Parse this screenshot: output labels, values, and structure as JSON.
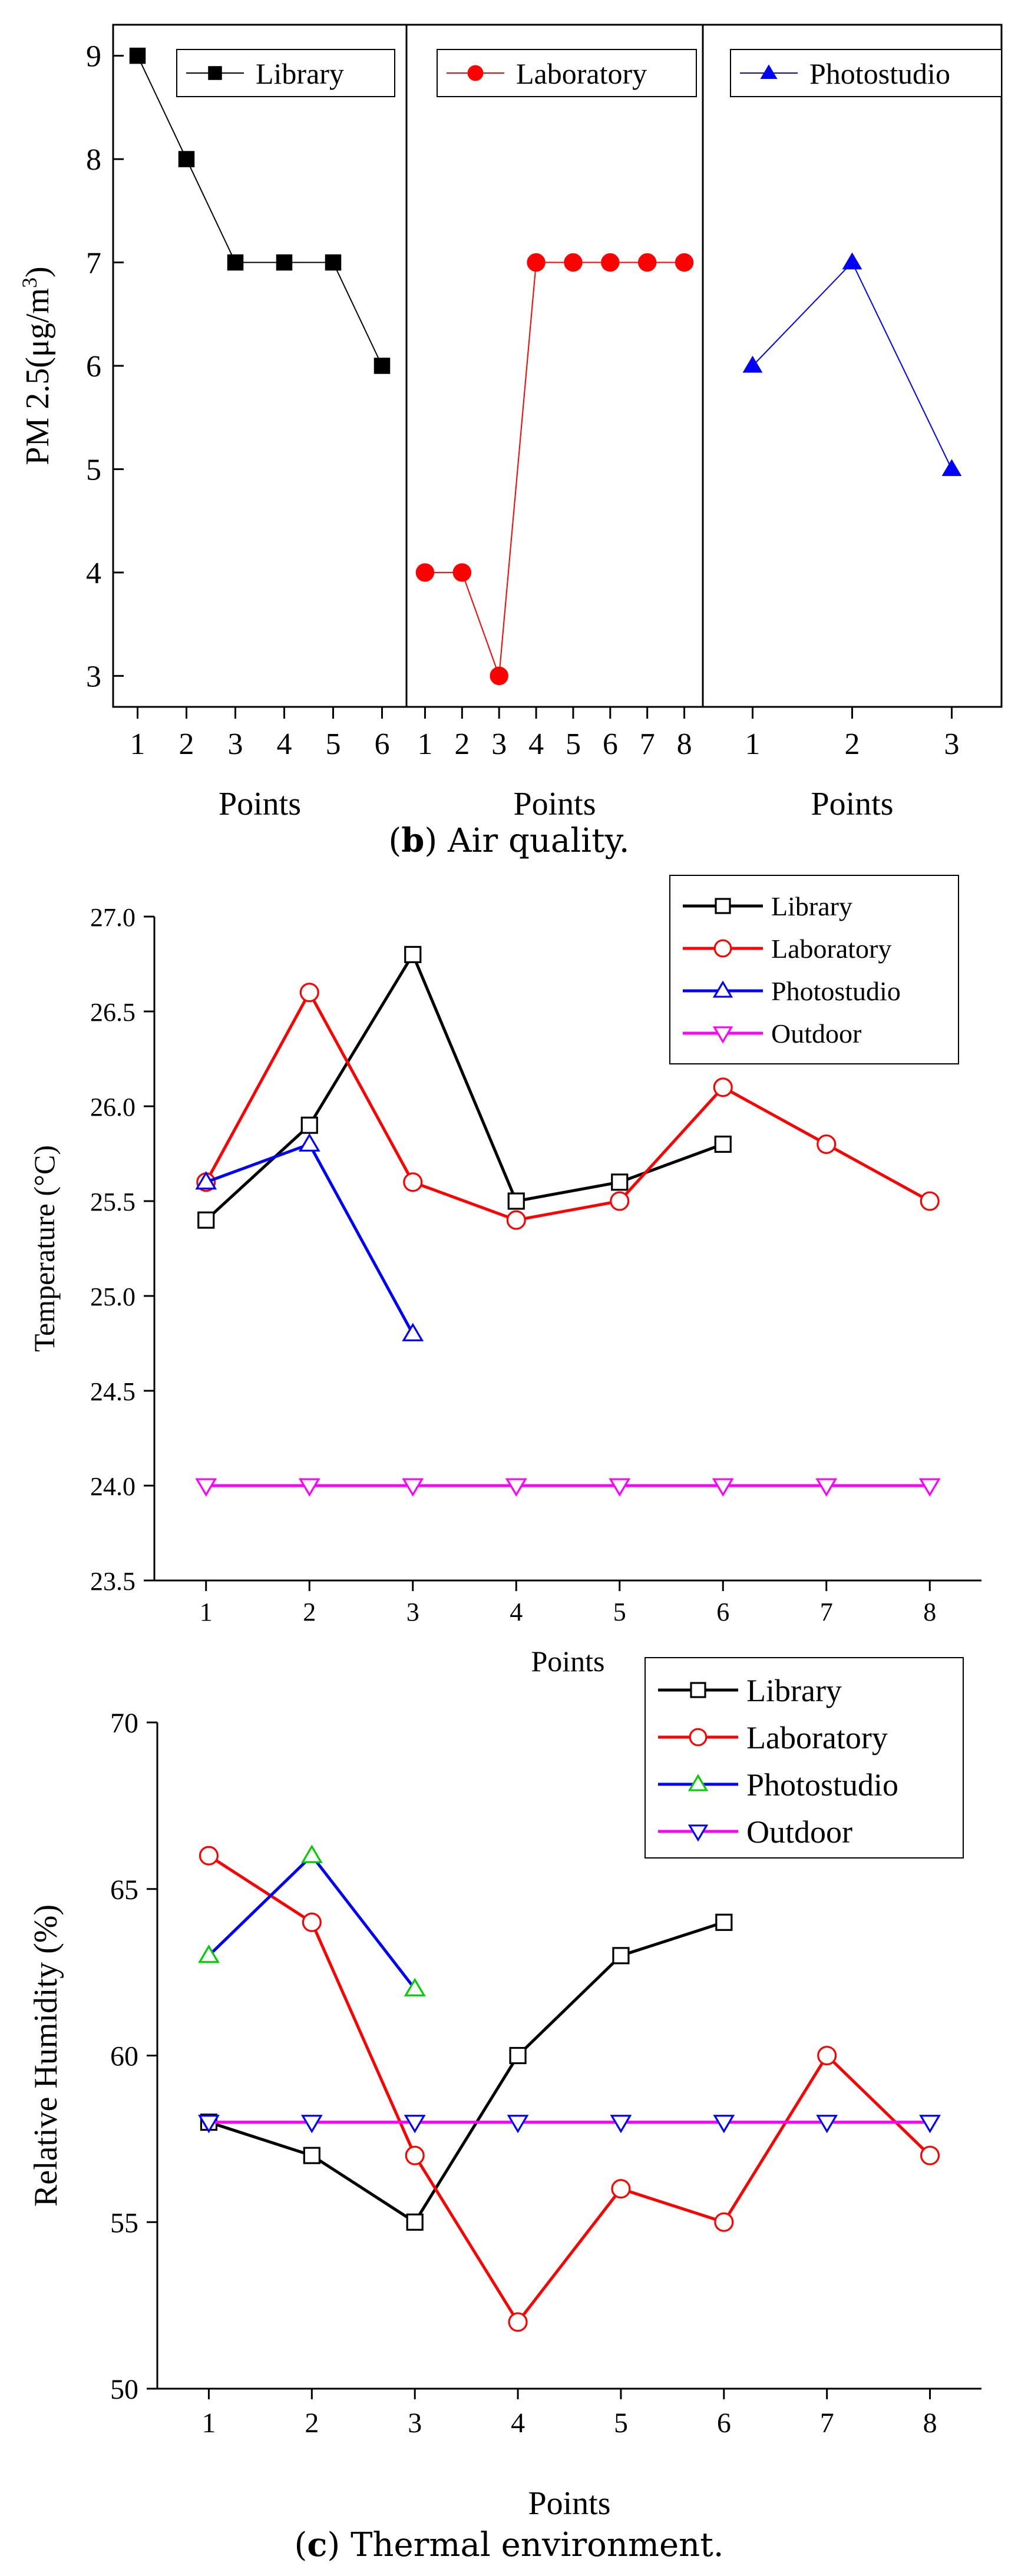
{
  "captions": {
    "air_quality": {
      "bold": "b",
      "rest": " Air quality."
    },
    "thermal": {
      "bold": "c",
      "rest": " Thermal environment."
    }
  },
  "chart_data": [
    {
      "type": "line",
      "panels": [
        {
          "name": "Library",
          "x": [
            1,
            2,
            3,
            4,
            5,
            6
          ],
          "values": [
            9,
            8,
            7,
            7,
            7,
            6
          ],
          "color": "#000000",
          "marker": "square-filled",
          "xlabel": "Points"
        },
        {
          "name": "Laboratory",
          "x": [
            1,
            2,
            3,
            4,
            5,
            6,
            7,
            8
          ],
          "values": [
            4,
            4,
            3,
            7,
            7,
            7,
            7,
            7
          ],
          "color": "#ff0000",
          "marker": "circle-filled",
          "xlabel": "Points"
        },
        {
          "name": "Photostudio",
          "x": [
            1,
            2,
            3
          ],
          "values": [
            6,
            7,
            5
          ],
          "color": "#0000ff",
          "marker": "triangle-filled",
          "xlabel": "Points"
        }
      ],
      "ylabel": "PM 2.5(μg/m",
      "ylabel_sup": "3",
      "ylabel_end": ")",
      "ylim": [
        2.7,
        9.3
      ],
      "yticks": [
        3,
        4,
        5,
        6,
        7,
        8,
        9
      ],
      "legend": "top of each panel"
    },
    {
      "type": "line",
      "x": [
        1,
        2,
        3,
        4,
        5,
        6,
        7,
        8
      ],
      "series": [
        {
          "name": "Library",
          "x": [
            1,
            2,
            3,
            4,
            5,
            6
          ],
          "values": [
            25.4,
            25.9,
            26.8,
            25.5,
            25.6,
            25.8
          ],
          "color": "#000000",
          "marker": "square-open"
        },
        {
          "name": "Laboratory",
          "x": [
            1,
            2,
            3,
            4,
            5,
            6,
            7,
            8
          ],
          "values": [
            25.6,
            26.6,
            25.6,
            25.4,
            25.5,
            26.1,
            25.8,
            25.5
          ],
          "color": "#ff0000",
          "marker": "circle-open"
        },
        {
          "name": "Photostudio",
          "x": [
            1,
            2,
            3
          ],
          "values": [
            25.6,
            25.8,
            24.8
          ],
          "color": "#0000ff",
          "marker": "triangle-up-open"
        },
        {
          "name": "Outdoor",
          "x": [
            1,
            2,
            3,
            4,
            5,
            6,
            7,
            8
          ],
          "values": [
            24.0,
            24.0,
            24.0,
            24.0,
            24.0,
            24.0,
            24.0,
            24.0
          ],
          "color": "#ff00ff",
          "marker": "triangle-down-open"
        }
      ],
      "xlabel": "Points",
      "ylabel": "Temperature (°C)",
      "xlim": [
        0.5,
        8.5
      ],
      "ylim": [
        23.5,
        27.0
      ],
      "yticks": [
        "23.5",
        "24.0",
        "24.5",
        "25.0",
        "25.5",
        "26.0",
        "26.5",
        "27.0"
      ],
      "legend": "top-right"
    },
    {
      "type": "line",
      "x": [
        1,
        2,
        3,
        4,
        5,
        6,
        7,
        8
      ],
      "series": [
        {
          "name": "Library",
          "x": [
            1,
            2,
            3,
            4,
            5,
            6
          ],
          "values": [
            58,
            57,
            55,
            60,
            63,
            64
          ],
          "color": "#000000",
          "marker": "square-open"
        },
        {
          "name": "Laboratory",
          "x": [
            1,
            2,
            3,
            4,
            5,
            6,
            7,
            8
          ],
          "values": [
            66,
            64,
            57,
            52,
            56,
            55,
            60,
            57
          ],
          "color": "#ff0000",
          "marker": "circle-open"
        },
        {
          "name": "Photostudio",
          "x": [
            1,
            2,
            3
          ],
          "values": [
            63,
            66,
            62
          ],
          "color": "#0000ff",
          "marker_color": "#00cc00",
          "marker": "triangle-up-open"
        },
        {
          "name": "Outdoor",
          "x": [
            1,
            2,
            3,
            4,
            5,
            6,
            7,
            8
          ],
          "values": [
            58,
            58,
            58,
            58,
            58,
            58,
            58,
            58
          ],
          "color": "#ff00ff",
          "marker_color": "#0000ff",
          "marker": "triangle-down-open"
        }
      ],
      "xlabel": "Points",
      "ylabel": "Relative Humidity (%)",
      "xlim": [
        0.5,
        8.5
      ],
      "ylim": [
        50,
        70
      ],
      "yticks": [
        50,
        55,
        60,
        65,
        70
      ],
      "legend": "top-right"
    }
  ]
}
